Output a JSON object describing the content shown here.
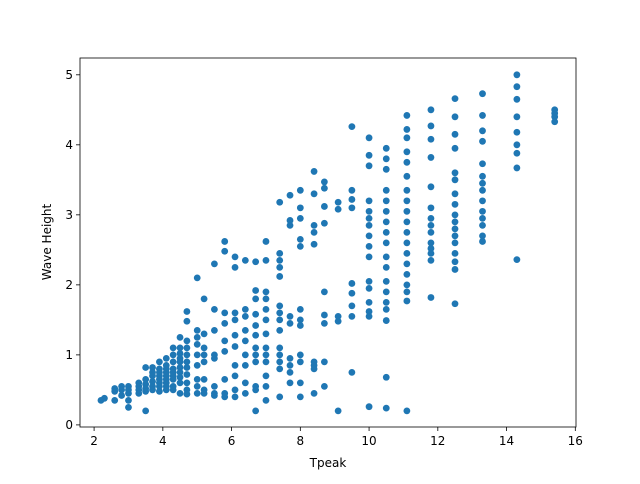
{
  "chart_data": {
    "type": "scatter",
    "x_label": "Tpeak",
    "y_label": "Wave Height",
    "color": "#1f77b4",
    "xlim": [
      1.59,
      16.02
    ],
    "ylim": [
      -0.03,
      5.24
    ],
    "xticks": [
      2,
      4,
      6,
      8,
      10,
      12,
      14,
      16
    ],
    "yticks": [
      0,
      1,
      2,
      3,
      4,
      5
    ],
    "grid": false,
    "x": [
      15.4,
      15.4,
      15.4,
      15.4,
      14.3,
      14.3,
      14.3,
      14.3,
      14.3,
      14.3,
      14.3,
      14.3,
      14.3,
      13.3,
      13.3,
      13.3,
      13.3,
      13.3,
      13.3,
      13.3,
      13.3,
      13.3,
      13.3,
      13.3,
      13.3,
      13.3,
      13.3,
      12.5,
      12.5,
      12.5,
      12.5,
      12.5,
      12.5,
      12.5,
      12.5,
      12.5,
      12.5,
      12.5,
      12.5,
      12.5,
      12.5,
      12.5,
      12.5,
      12.5,
      11.8,
      11.8,
      11.8,
      11.8,
      11.8,
      11.8,
      11.8,
      11.8,
      11.8,
      11.8,
      11.8,
      11.8,
      11.8,
      11.8,
      11.1,
      11.1,
      11.1,
      11.1,
      11.1,
      11.1,
      11.1,
      11.1,
      11.1,
      11.1,
      11.1,
      11.1,
      11.1,
      11.1,
      11.1,
      11.1,
      11.1,
      11.1,
      11.1,
      10.5,
      10.5,
      10.5,
      10.5,
      10.5,
      10.5,
      10.5,
      10.5,
      10.5,
      10.5,
      10.5,
      10.5,
      10.5,
      10.5,
      10.5,
      10.5,
      10.5,
      10.5,
      10.0,
      10.0,
      10.0,
      10.0,
      10.0,
      10.0,
      10.0,
      10.0,
      10.0,
      10.0,
      10.0,
      10.0,
      10.0,
      10.0,
      10.0,
      10.0,
      9.5,
      9.5,
      9.5,
      9.5,
      9.5,
      9.5,
      9.5,
      9.5,
      9.5,
      9.1,
      9.1,
      9.1,
      9.1,
      9.1,
      8.7,
      8.7,
      8.7,
      8.7,
      8.7,
      8.7,
      8.7,
      8.7,
      8.7,
      8.4,
      8.4,
      8.4,
      8.4,
      8.4,
      8.4,
      8.4,
      8.4,
      8.4,
      8.0,
      8.0,
      8.0,
      8.0,
      8.0,
      8.0,
      8.0,
      8.0,
      8.0,
      8.0,
      8.0,
      8.0,
      7.7,
      7.7,
      7.7,
      7.7,
      7.7,
      7.7,
      7.7,
      7.7,
      7.7,
      7.4,
      7.4,
      7.4,
      7.4,
      7.4,
      7.4,
      7.4,
      7.4,
      7.4,
      7.4,
      7.4,
      7.4,
      7.4,
      7.4,
      7.0,
      7.0,
      7.0,
      7.0,
      7.0,
      7.0,
      7.0,
      7.0,
      7.0,
      7.0,
      7.0,
      7.0,
      7.0,
      6.7,
      6.7,
      6.7,
      6.7,
      6.7,
      6.7,
      6.7,
      6.7,
      6.7,
      6.7,
      6.7,
      6.7,
      6.4,
      6.4,
      6.4,
      6.4,
      6.4,
      6.4,
      6.4,
      6.4,
      6.4,
      6.1,
      6.1,
      6.1,
      6.1,
      6.1,
      6.1,
      6.1,
      6.1,
      6.1,
      6.1,
      5.8,
      5.8,
      5.8,
      5.8,
      5.8,
      5.8,
      5.8,
      5.8,
      5.8,
      5.5,
      5.5,
      5.5,
      5.5,
      5.5,
      5.5,
      5.5,
      5.5,
      5.2,
      5.2,
      5.2,
      5.2,
      5.2,
      5.2,
      5.2,
      5.2,
      5.0,
      5.0,
      5.0,
      5.0,
      5.0,
      5.0,
      5.0,
      5.0,
      5.0,
      4.7,
      4.7,
      4.7,
      4.7,
      4.7,
      4.7,
      4.7,
      4.7,
      4.7,
      4.7,
      4.7,
      4.5,
      4.5,
      4.5,
      4.5,
      4.5,
      4.5,
      4.5,
      4.5,
      4.5,
      4.5,
      4.3,
      4.3,
      4.3,
      4.3,
      4.3,
      4.3,
      4.3,
      4.3,
      4.3,
      4.1,
      4.1,
      4.1,
      4.1,
      4.1,
      4.1,
      4.1,
      4.1,
      4.1,
      3.9,
      3.9,
      3.9,
      3.9,
      3.9,
      3.9,
      3.9,
      3.9,
      3.7,
      3.7,
      3.7,
      3.7,
      3.7,
      3.7,
      3.5,
      3.5,
      3.5,
      3.5,
      3.5,
      3.5,
      3.3,
      3.3,
      3.3,
      3.3,
      3.0,
      3.0,
      3.0,
      3.0,
      3.0,
      2.8,
      2.8,
      2.8,
      2.6,
      2.6,
      2.6,
      2.3,
      2.2
    ],
    "values": [
      4.5,
      4.45,
      4.4,
      4.33,
      5.0,
      4.83,
      4.65,
      4.4,
      4.18,
      4.0,
      3.88,
      3.67,
      2.36,
      4.73,
      4.42,
      4.2,
      4.05,
      3.73,
      3.55,
      3.45,
      3.35,
      3.2,
      3.05,
      2.95,
      2.85,
      2.7,
      2.62,
      4.66,
      4.4,
      4.15,
      3.95,
      3.6,
      3.5,
      3.3,
      3.15,
      3.0,
      2.9,
      2.8,
      2.7,
      2.6,
      2.45,
      2.33,
      2.22,
      1.73,
      4.5,
      4.27,
      4.08,
      3.82,
      3.4,
      3.1,
      2.95,
      2.85,
      2.75,
      2.6,
      2.52,
      2.45,
      2.35,
      1.82,
      4.42,
      4.22,
      4.1,
      3.9,
      3.75,
      3.55,
      3.35,
      3.2,
      3.05,
      2.9,
      2.75,
      2.6,
      2.45,
      2.3,
      2.15,
      2.0,
      1.9,
      1.77,
      0.2,
      3.95,
      3.8,
      3.65,
      3.35,
      3.2,
      3.05,
      2.9,
      2.75,
      2.6,
      2.4,
      2.25,
      2.05,
      1.9,
      1.75,
      1.65,
      1.49,
      0.68,
      0.24,
      4.1,
      3.85,
      3.7,
      3.2,
      3.05,
      2.95,
      2.85,
      2.7,
      2.55,
      2.4,
      2.05,
      1.95,
      1.75,
      1.62,
      1.55,
      0.26,
      4.26,
      3.35,
      3.22,
      3.1,
      2.02,
      1.88,
      1.7,
      1.55,
      0.75,
      3.18,
      3.08,
      1.55,
      1.48,
      0.2,
      3.47,
      3.38,
      3.12,
      2.88,
      1.9,
      1.57,
      1.45,
      0.9,
      0.55,
      3.62,
      3.3,
      2.85,
      2.75,
      2.58,
      0.9,
      0.85,
      0.8,
      0.45,
      3.35,
      3.1,
      2.95,
      2.65,
      2.55,
      1.65,
      1.5,
      1.42,
      1.0,
      0.9,
      0.6,
      0.4,
      3.28,
      2.92,
      2.85,
      1.55,
      1.45,
      0.95,
      0.85,
      0.75,
      0.6,
      3.18,
      2.45,
      2.35,
      2.25,
      2.12,
      1.7,
      1.6,
      1.5,
      1.35,
      1.1,
      1.0,
      0.9,
      0.8,
      0.4,
      2.62,
      2.35,
      1.9,
      1.8,
      1.65,
      1.5,
      1.3,
      1.1,
      1.0,
      0.9,
      0.7,
      0.55,
      0.35,
      2.33,
      1.92,
      1.8,
      1.58,
      1.42,
      1.28,
      1.1,
      1.0,
      0.9,
      0.55,
      0.5,
      0.2,
      2.35,
      1.65,
      1.55,
      1.35,
      1.2,
      1.0,
      0.85,
      0.6,
      0.45,
      2.4,
      2.25,
      1.6,
      1.5,
      1.28,
      1.12,
      0.85,
      0.7,
      0.5,
      0.4,
      2.62,
      2.48,
      1.6,
      1.45,
      1.2,
      1.05,
      0.65,
      0.45,
      0.4,
      2.3,
      1.65,
      1.35,
      1.0,
      0.95,
      0.55,
      0.45,
      0.42,
      1.8,
      1.3,
      1.1,
      1.0,
      0.9,
      0.65,
      0.5,
      0.45,
      2.1,
      1.35,
      1.25,
      1.15,
      1.0,
      0.85,
      0.65,
      0.55,
      0.45,
      1.62,
      1.48,
      1.2,
      1.1,
      1.0,
      0.9,
      0.82,
      0.72,
      0.6,
      0.5,
      0.44,
      1.25,
      1.1,
      1.02,
      0.95,
      0.9,
      0.82,
      0.75,
      0.68,
      0.6,
      0.45,
      1.1,
      1.0,
      0.9,
      0.8,
      0.75,
      0.7,
      0.65,
      0.55,
      0.5,
      0.95,
      0.85,
      0.8,
      0.75,
      0.7,
      0.65,
      0.6,
      0.55,
      0.5,
      0.9,
      0.8,
      0.75,
      0.7,
      0.65,
      0.6,
      0.55,
      0.48,
      0.82,
      0.75,
      0.7,
      0.62,
      0.55,
      0.5,
      0.82,
      0.65,
      0.58,
      0.52,
      0.48,
      0.2,
      0.6,
      0.55,
      0.5,
      0.45,
      0.55,
      0.5,
      0.45,
      0.35,
      0.25,
      0.55,
      0.5,
      0.42,
      0.52,
      0.48,
      0.35,
      0.38,
      0.35
    ]
  }
}
